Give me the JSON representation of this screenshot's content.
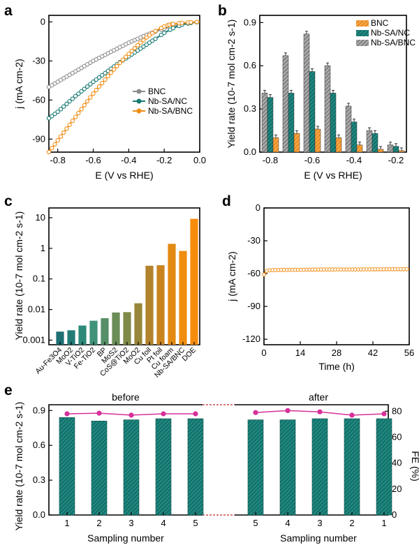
{
  "colors": {
    "bnc": "#8c8c8c",
    "nbsanc": "#187a73",
    "nbsabnc": "#f18d16",
    "fe": "#d6309a",
    "teal_label": "#1d8f87",
    "magenta_label": "#d6309a"
  },
  "chart_data": [
    {
      "panel": "a",
      "type": "line",
      "xlabel": "E (V vs RHE)",
      "ylabel": "j (mA cm-2)",
      "xlim": [
        -0.85,
        0.0
      ],
      "ylim": [
        -100,
        5
      ],
      "xticks": [
        "-0.8",
        "-0.6",
        "-0.4",
        "-0.2",
        "0.0"
      ],
      "yticks": [
        "0",
        "-30",
        "-60",
        "-90"
      ],
      "legend_position": "right",
      "series": [
        {
          "name": "BNC",
          "x": [
            -0.85,
            -0.8,
            -0.75,
            -0.7,
            -0.65,
            -0.6,
            -0.55,
            -0.5,
            -0.45,
            -0.4,
            -0.35,
            -0.3,
            -0.25,
            -0.2,
            -0.15,
            -0.1,
            -0.05,
            0.0
          ],
          "y": [
            -50,
            -46,
            -42,
            -38,
            -34,
            -30,
            -26.5,
            -23,
            -19.5,
            -16,
            -13,
            -10,
            -7.5,
            -5.2,
            -3.2,
            -1.7,
            -0.7,
            0
          ]
        },
        {
          "name": "Nb-SA/NC",
          "x": [
            -0.85,
            -0.8,
            -0.75,
            -0.7,
            -0.65,
            -0.6,
            -0.55,
            -0.5,
            -0.45,
            -0.4,
            -0.35,
            -0.3,
            -0.25,
            -0.2,
            -0.15,
            -0.1,
            -0.05,
            0.0
          ],
          "y": [
            -74,
            -69,
            -63,
            -57,
            -51.5,
            -46,
            -41,
            -36,
            -31,
            -26.5,
            -22,
            -17.5,
            -13,
            -8.5,
            -4.8,
            -2.2,
            -0.8,
            0
          ]
        },
        {
          "name": "Nb-SA/BNC",
          "x": [
            -0.85,
            -0.8,
            -0.75,
            -0.7,
            -0.65,
            -0.6,
            -0.55,
            -0.5,
            -0.45,
            -0.4,
            -0.35,
            -0.3,
            -0.25,
            -0.2,
            -0.17,
            -0.15,
            -0.1,
            -0.05,
            0.0
          ],
          "y": [
            -100,
            -91,
            -82,
            -73,
            -64,
            -55,
            -47,
            -39,
            -31.5,
            -24.5,
            -18,
            -12,
            -7,
            -3.5,
            -2.2,
            -1.6,
            -0.8,
            -0.3,
            0
          ]
        }
      ]
    },
    {
      "panel": "b",
      "type": "bar",
      "xlabel": "E (V vs RHE)",
      "ylabel": "Yield rate (10-7 mol cm-2 s-1)",
      "xlim": [
        -0.85,
        -0.15
      ],
      "ylim": [
        0,
        0.95
      ],
      "xticks": [
        "-0.8",
        "-0.6",
        "-0.4",
        "-0.2"
      ],
      "yticks": [
        "0.0",
        "0.3",
        "0.6",
        "0.9"
      ],
      "legend_position": "top-right",
      "categories": [
        "-0.8",
        "-0.7",
        "-0.6",
        "-0.5",
        "-0.4",
        "-0.3",
        "-0.2"
      ],
      "series": [
        {
          "name": "BNC",
          "values": [
            0.1,
            0.13,
            0.16,
            0.1,
            0.05,
            0.02,
            0.01
          ]
        },
        {
          "name": "Nb-SA/NC",
          "values": [
            0.38,
            0.41,
            0.56,
            0.41,
            0.21,
            0.13,
            0.04
          ]
        },
        {
          "name": "Nb-SA/BNC",
          "values": [
            0.41,
            0.67,
            0.82,
            0.6,
            0.32,
            0.15,
            0.05
          ]
        }
      ]
    },
    {
      "panel": "c",
      "type": "bar",
      "scale": "log",
      "ylabel": "Yield rate (10-7 mol cm-2 s-1)",
      "ylim": [
        0.001,
        10
      ],
      "yticks": [
        "0.001",
        "0.01",
        "0.1",
        "1",
        "10"
      ],
      "categories": [
        "Au-Fe3O4",
        "MoO2",
        "V-TiO2",
        "Fe-TiO2",
        "BP",
        "MoS2",
        "CoS@TiO2",
        "MoO2",
        "Cu foil",
        "Pt foil",
        "Cu foam",
        "Nb-SA/BNC",
        "DOE"
      ],
      "values": [
        0.0019,
        0.0021,
        0.003,
        0.0043,
        0.0052,
        0.008,
        0.0082,
        0.016,
        0.27,
        0.28,
        1.4,
        0.82,
        9.2
      ]
    },
    {
      "panel": "d",
      "type": "line",
      "xlabel": "Time (h)",
      "ylabel": "j (mA cm-2)",
      "xlim": [
        0,
        56
      ],
      "ylim": [
        -125,
        0
      ],
      "xticks": [
        "0",
        "14",
        "28",
        "42",
        "56"
      ],
      "yticks": [
        "0",
        "-30",
        "-60",
        "-90",
        "-120"
      ],
      "series": [
        {
          "name": "Nb-SA/BNC",
          "x": [
            0,
            0.5,
            1,
            2,
            4,
            8,
            14,
            20,
            28,
            35,
            42,
            49,
            56
          ],
          "y": [
            -61,
            -59,
            -57.5,
            -57,
            -56.8,
            -56.6,
            -56.5,
            -56.3,
            -56.2,
            -56.2,
            -56.1,
            -56,
            -56
          ]
        }
      ]
    },
    {
      "panel": "e",
      "type": "bar",
      "xlabel": "Sampling number",
      "ylabel": "Yield rate (10-7 mol cm-2 s-1)",
      "y2label": "FE (%)",
      "ylim": [
        0,
        0.95
      ],
      "y2lim": [
        0,
        85
      ],
      "yticks": [
        "0.0",
        "0.3",
        "0.6",
        "0.9"
      ],
      "y2ticks": [
        "0",
        "20",
        "40",
        "60",
        "80"
      ],
      "groups": [
        {
          "label": "before",
          "categories": [
            "1",
            "2",
            "3",
            "4",
            "5"
          ],
          "yield": [
            0.84,
            0.81,
            0.82,
            0.83,
            0.83
          ],
          "fe": [
            78,
            78.5,
            77,
            78,
            78
          ]
        },
        {
          "label": "after",
          "categories": [
            "5",
            "4",
            "3",
            "2",
            "1"
          ],
          "yield": [
            0.82,
            0.82,
            0.83,
            0.83,
            0.83
          ],
          "fe": [
            79,
            80.5,
            79.5,
            77,
            78
          ]
        }
      ]
    }
  ],
  "panel_labels": [
    "a",
    "b",
    "c",
    "d",
    "e"
  ]
}
